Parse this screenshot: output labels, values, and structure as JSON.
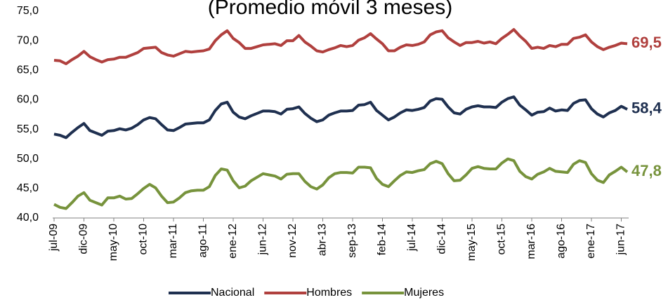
{
  "chart_data": {
    "type": "line",
    "title": "(Promedio móvil 3 meses)",
    "categories": [
      "jul-09",
      null,
      null,
      null,
      null,
      "dic-09",
      null,
      null,
      null,
      null,
      "may-10",
      null,
      null,
      null,
      null,
      "oct-10",
      null,
      null,
      null,
      null,
      "mar-11",
      null,
      null,
      null,
      null,
      "ago-11",
      null,
      null,
      null,
      null,
      "ene-12",
      null,
      null,
      null,
      null,
      "jun-12",
      null,
      null,
      null,
      null,
      "nov-12",
      null,
      null,
      null,
      null,
      "abr-13",
      null,
      null,
      null,
      null,
      "sep-13",
      null,
      null,
      null,
      null,
      "feb-14",
      null,
      null,
      null,
      null,
      "jul-14",
      null,
      null,
      null,
      null,
      "dic-14",
      null,
      null,
      null,
      null,
      "may-15",
      null,
      null,
      null,
      null,
      "oct-15",
      null,
      null,
      null,
      null,
      "mar-16",
      null,
      null,
      null,
      null,
      "ago-16",
      null,
      null,
      null,
      null,
      "ene-17",
      null,
      null,
      null,
      null,
      "jun-17",
      null
    ],
    "series": [
      {
        "name": "Nacional",
        "color": "#1f3050",
        "values": [
          54.2,
          54.0,
          53.6,
          54.5,
          55.3,
          56.0,
          54.8,
          54.4,
          54.0,
          54.7,
          54.8,
          55.1,
          54.9,
          55.2,
          55.8,
          56.6,
          57.0,
          56.8,
          55.8,
          54.9,
          54.8,
          55.3,
          55.9,
          56.0,
          56.1,
          56.1,
          56.6,
          58.2,
          59.3,
          59.6,
          57.9,
          57.1,
          56.8,
          57.3,
          57.7,
          58.1,
          58.1,
          58.0,
          57.6,
          58.4,
          58.5,
          58.8,
          57.7,
          56.9,
          56.3,
          56.6,
          57.4,
          57.8,
          58.1,
          58.1,
          58.2,
          59.1,
          59.2,
          59.6,
          58.2,
          57.4,
          56.6,
          57.1,
          57.8,
          58.3,
          58.2,
          58.4,
          58.7,
          59.8,
          60.2,
          60.1,
          58.8,
          57.8,
          57.6,
          58.4,
          58.8,
          59.0,
          58.8,
          58.8,
          58.7,
          59.6,
          60.2,
          60.5,
          59.1,
          58.3,
          57.4,
          57.9,
          58.0,
          58.6,
          58.1,
          58.3,
          58.2,
          59.4,
          59.9,
          60.0,
          58.5,
          57.6,
          57.1,
          57.8,
          58.2,
          58.9,
          58.4
        ],
        "value_labels": [
          null,
          null,
          null,
          null,
          null,
          null,
          null,
          null,
          null,
          null,
          null,
          null,
          null,
          null,
          null,
          null,
          null,
          null,
          null,
          null,
          null,
          null,
          null,
          null,
          null,
          null,
          null,
          null,
          null,
          null,
          null,
          null,
          null,
          null,
          null,
          null,
          null,
          null,
          null,
          null,
          null,
          null,
          null,
          null,
          null,
          null,
          null,
          null,
          null,
          null,
          null,
          null,
          null,
          null,
          null,
          null,
          null,
          null,
          null,
          null,
          null,
          null,
          null,
          null,
          null,
          null,
          null,
          null,
          null,
          null,
          null,
          null,
          null,
          null,
          null,
          null,
          null,
          null,
          null,
          null,
          null,
          null,
          null,
          null,
          null,
          null,
          null,
          null,
          null,
          null,
          null,
          null,
          null,
          null,
          null,
          null,
          "58,4"
        ]
      },
      {
        "name": "Hombres",
        "color": "#b0403e",
        "values": [
          66.7,
          66.6,
          66.1,
          66.8,
          67.4,
          68.2,
          67.3,
          66.8,
          66.4,
          66.8,
          66.9,
          67.2,
          67.2,
          67.6,
          68.0,
          68.7,
          68.8,
          68.9,
          68.0,
          67.6,
          67.4,
          67.8,
          68.2,
          68.1,
          68.2,
          68.3,
          68.6,
          70.0,
          71.0,
          71.7,
          70.4,
          69.7,
          68.7,
          68.7,
          69.0,
          69.3,
          69.4,
          69.5,
          69.2,
          70.0,
          70.0,
          70.9,
          69.8,
          69.1,
          68.3,
          68.1,
          68.5,
          68.8,
          69.2,
          69.0,
          69.2,
          70.1,
          70.5,
          71.2,
          70.3,
          69.5,
          68.3,
          68.3,
          68.9,
          69.3,
          69.2,
          69.4,
          69.8,
          71.0,
          71.5,
          71.7,
          70.5,
          69.8,
          69.2,
          69.7,
          69.7,
          69.9,
          69.6,
          69.8,
          69.5,
          70.4,
          71.1,
          71.9,
          70.8,
          69.9,
          68.7,
          68.9,
          68.7,
          69.2,
          69.0,
          69.4,
          69.4,
          70.4,
          70.6,
          71.0,
          69.8,
          69.0,
          68.5,
          68.9,
          69.2,
          69.6,
          69.5
        ],
        "value_labels": [
          null,
          null,
          null,
          null,
          null,
          null,
          null,
          null,
          null,
          null,
          null,
          null,
          null,
          null,
          null,
          null,
          null,
          null,
          null,
          null,
          null,
          null,
          null,
          null,
          null,
          null,
          null,
          null,
          null,
          null,
          null,
          null,
          null,
          null,
          null,
          null,
          null,
          null,
          null,
          null,
          null,
          null,
          null,
          null,
          null,
          null,
          null,
          null,
          null,
          null,
          null,
          null,
          null,
          null,
          null,
          null,
          null,
          null,
          null,
          null,
          null,
          null,
          null,
          null,
          null,
          null,
          null,
          null,
          null,
          null,
          null,
          null,
          null,
          null,
          null,
          null,
          null,
          null,
          null,
          null,
          null,
          null,
          null,
          null,
          null,
          null,
          null,
          null,
          null,
          null,
          null,
          null,
          null,
          null,
          null,
          null,
          "69,5"
        ]
      },
      {
        "name": "Mujeres",
        "color": "#77933c",
        "values": [
          42.3,
          41.8,
          41.6,
          42.6,
          43.7,
          44.3,
          43.0,
          42.6,
          42.2,
          43.4,
          43.4,
          43.7,
          43.2,
          43.3,
          44.1,
          45.0,
          45.7,
          45.1,
          43.7,
          42.6,
          42.7,
          43.4,
          44.3,
          44.6,
          44.7,
          44.7,
          45.3,
          47.2,
          48.3,
          48.1,
          46.3,
          45.1,
          45.4,
          46.3,
          46.9,
          47.5,
          47.3,
          47.1,
          46.6,
          47.4,
          47.5,
          47.5,
          46.2,
          45.3,
          44.9,
          45.6,
          46.8,
          47.5,
          47.7,
          47.7,
          47.6,
          48.6,
          48.6,
          48.5,
          46.7,
          45.7,
          45.3,
          46.3,
          47.2,
          47.8,
          47.7,
          48.0,
          48.2,
          49.2,
          49.6,
          49.2,
          47.5,
          46.3,
          46.4,
          47.3,
          48.4,
          48.7,
          48.4,
          48.3,
          48.3,
          49.3,
          50.0,
          49.7,
          47.9,
          47.0,
          46.6,
          47.4,
          47.8,
          48.4,
          47.9,
          47.8,
          47.7,
          49.1,
          49.7,
          49.4,
          47.5,
          46.4,
          46.0,
          47.3,
          47.9,
          48.6,
          47.8
        ],
        "value_labels": [
          null,
          null,
          null,
          null,
          null,
          null,
          null,
          null,
          null,
          null,
          null,
          null,
          null,
          null,
          null,
          null,
          null,
          null,
          null,
          null,
          null,
          null,
          null,
          null,
          null,
          null,
          null,
          null,
          null,
          null,
          null,
          null,
          null,
          null,
          null,
          null,
          null,
          null,
          null,
          null,
          null,
          null,
          null,
          null,
          null,
          null,
          null,
          null,
          null,
          null,
          null,
          null,
          null,
          null,
          null,
          null,
          null,
          null,
          null,
          null,
          null,
          null,
          null,
          null,
          null,
          null,
          null,
          null,
          null,
          null,
          null,
          null,
          null,
          null,
          null,
          null,
          null,
          null,
          null,
          null,
          null,
          null,
          null,
          null,
          null,
          null,
          null,
          null,
          null,
          null,
          null,
          null,
          null,
          null,
          null,
          null,
          "47,8"
        ]
      }
    ],
    "ylim": [
      40,
      75
    ],
    "yticks": [
      {
        "value": 40,
        "label": "40,0"
      },
      {
        "value": 45,
        "label": "45,0"
      },
      {
        "value": 50,
        "label": "50,0"
      },
      {
        "value": 55,
        "label": "55,0"
      },
      {
        "value": 60,
        "label": "60,0"
      },
      {
        "value": 65,
        "label": "65,0"
      },
      {
        "value": 70,
        "label": "70,0"
      },
      {
        "value": 75,
        "label": "75,0"
      }
    ],
    "grid": false,
    "legend": "bottom"
  }
}
